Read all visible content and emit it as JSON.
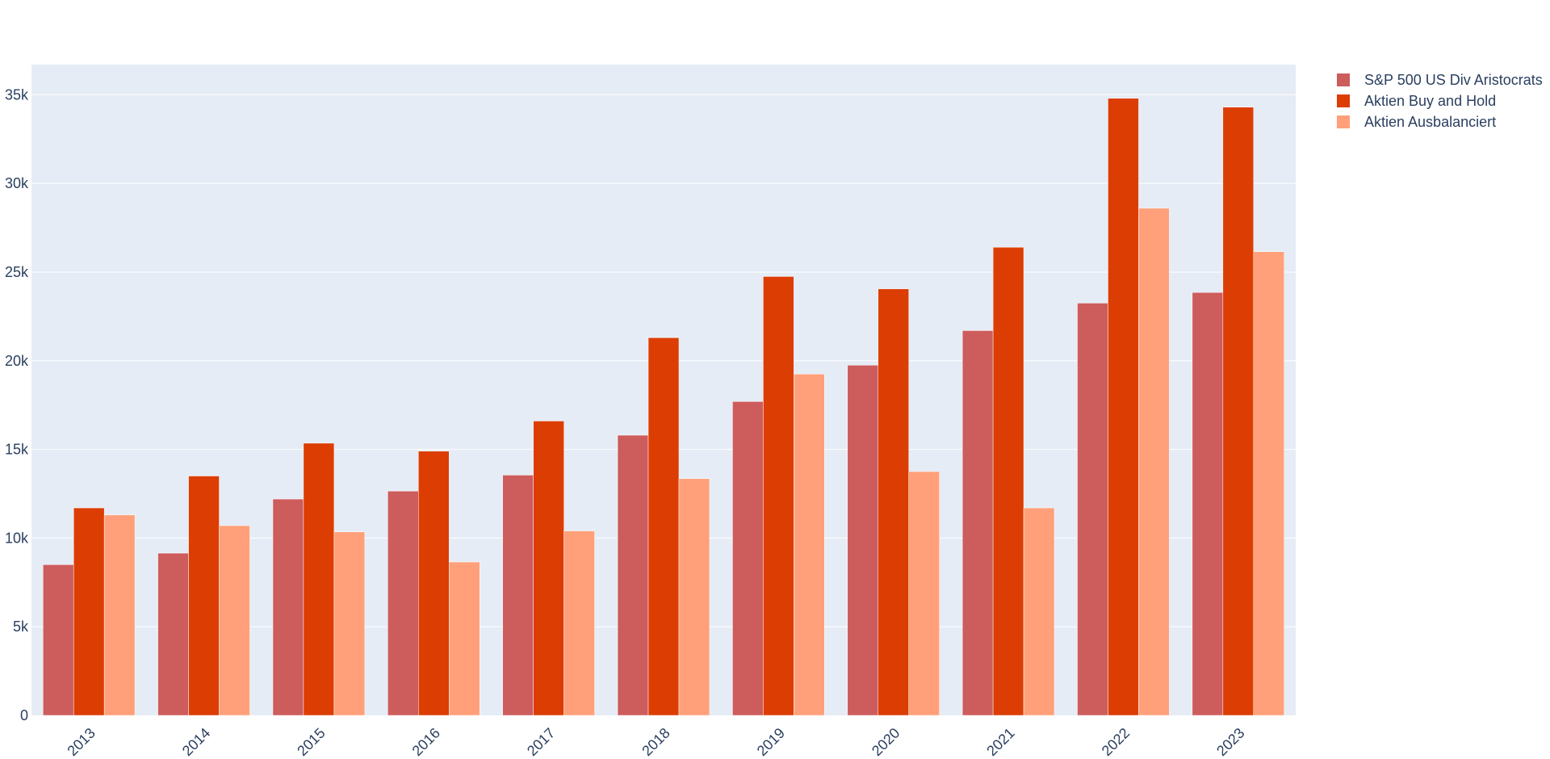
{
  "chart_data": {
    "type": "bar",
    "categories": [
      "2013",
      "2014",
      "2015",
      "2016",
      "2017",
      "2018",
      "2019",
      "2020",
      "2021",
      "2022",
      "2023"
    ],
    "series": [
      {
        "name": "S&P 500 US Div Aristocrats",
        "color": "#cd5c5c",
        "values": [
          8500,
          9150,
          12200,
          12650,
          13550,
          15800,
          17700,
          19750,
          21700,
          23250,
          23850
        ]
      },
      {
        "name": "Aktien Buy and Hold",
        "color": "#dc3d03",
        "values": [
          11700,
          13500,
          15350,
          14900,
          16600,
          21300,
          24750,
          24050,
          26400,
          34800,
          34300
        ]
      },
      {
        "name": "Aktien Ausbalanciert",
        "color": "#ffa07a",
        "values": [
          11300,
          10700,
          10350,
          8650,
          10400,
          13350,
          19250,
          13750,
          11700,
          28600,
          26150
        ]
      }
    ],
    "y_ticks": [
      0,
      5000,
      10000,
      15000,
      20000,
      25000,
      30000,
      35000
    ],
    "y_tick_labels": [
      "0",
      "5k",
      "10k",
      "15k",
      "20k",
      "25k",
      "30k",
      "35k"
    ],
    "ylim": [
      0,
      36700
    ],
    "grid": true,
    "legend_position": "top-right",
    "plot_background": "#e5ecf6",
    "gridline_color": "#ffffff",
    "text_color": "#2a3f5f"
  }
}
